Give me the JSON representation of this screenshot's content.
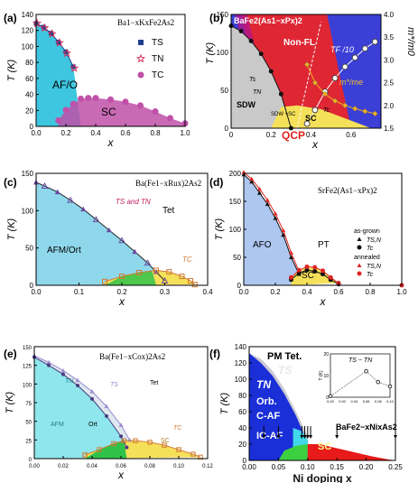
{
  "panels": [
    {
      "id": "a",
      "label": "(a)",
      "title": "Ba1−xKxFe2As2",
      "xlabel": "x",
      "ylabel": "T (K)",
      "xlim": [
        0,
        1.0
      ],
      "ylim": [
        0,
        150
      ],
      "xticks": [
        "0.0",
        "0.2",
        "0.4",
        "0.6",
        "0.8",
        "1.0"
      ],
      "yticks": [
        "0",
        "20",
        "40",
        "60",
        "80",
        "100",
        "120",
        "140"
      ],
      "region_labels": [
        "AF/O",
        "SC"
      ],
      "legend": [
        "TS",
        "TN",
        "TC"
      ],
      "ts_x": [
        0.0,
        0.05,
        0.1,
        0.15,
        0.2,
        0.25
      ],
      "ts_y": [
        138,
        133,
        125,
        113,
        100,
        80
      ],
      "tn_x": [
        0.0,
        0.05,
        0.1,
        0.15,
        0.2,
        0.25
      ],
      "tn_y": [
        138,
        132,
        124,
        112,
        98,
        78
      ],
      "tc_x": [
        0.15,
        0.2,
        0.25,
        0.3,
        0.35,
        0.4,
        0.5,
        0.6,
        0.7,
        0.8,
        0.9,
        1.0
      ],
      "tc_y": [
        8,
        22,
        30,
        37,
        38,
        38,
        36,
        33,
        28,
        20,
        11,
        4
      ],
      "colors": {
        "afo": "#3ec6e0",
        "sc": "#c050a8",
        "ts": "#1f3f8f",
        "tn": "#d0305a",
        "tc": "#c050a8"
      }
    },
    {
      "id": "b",
      "label": "(b)",
      "title": "BaFe2(As1−xPx)2",
      "xlabel": "x",
      "ylabel": "T (K)",
      "ylabel2": "m*/m0",
      "xlim": [
        0,
        0.75
      ],
      "ylim": [
        0,
        150
      ],
      "xticks": [
        "0",
        "0.2",
        "0.4",
        "0.6"
      ],
      "yticks": [
        "0",
        "50",
        "100",
        "150"
      ],
      "y2ticks": [
        "1.5",
        "2.0",
        "2.5",
        "3.0",
        "3.5",
        "4.0"
      ],
      "region_labels": [
        "SDW",
        "SC",
        "Non-FL",
        "SDW +SC",
        "QCP"
      ],
      "curve_labels": [
        "TF /10",
        "m*/me",
        "Ts",
        "TN",
        "Tc"
      ],
      "tn_x": [
        0,
        0.05,
        0.1,
        0.15,
        0.2,
        0.25,
        0.3
      ],
      "tn_y": [
        135,
        128,
        115,
        98,
        75,
        45,
        0
      ],
      "tf_x": [
        0.38,
        0.42,
        0.47,
        0.52,
        0.57,
        0.62,
        0.67,
        0.72
      ],
      "tf_y": [
        1.6,
        1.9,
        2.3,
        2.6,
        2.85,
        3.05,
        3.25,
        3.4
      ],
      "m_x": [
        0.38,
        0.42,
        0.47,
        0.52,
        0.57,
        0.62,
        0.67,
        0.72
      ],
      "m_y": [
        2.9,
        2.5,
        2.25,
        2.1,
        2.0,
        1.93,
        1.87,
        1.82
      ],
      "colors": {
        "sdw": "#c9c9c9",
        "sc": "#f5e05a",
        "red": "#e8262b",
        "blue": "#3b3fd6",
        "tn": "#111111",
        "tf": "#ffffff",
        "m": "#f0b020"
      }
    },
    {
      "id": "c",
      "label": "(c)",
      "title": "Ba(Fe1−xRux)2As2",
      "xlabel": "x",
      "ylabel": "T (K)",
      "xlim": [
        0,
        0.4
      ],
      "ylim": [
        0,
        150
      ],
      "xticks": [
        "0.0",
        "0.1",
        "0.2",
        "0.3",
        "0.4"
      ],
      "yticks": [
        "0",
        "50",
        "100",
        "150"
      ],
      "region_labels": [
        "AFM/Ort",
        "Tet"
      ],
      "curve_labels": [
        "TS and TN",
        "TC"
      ],
      "tn_x": [
        0,
        0.02,
        0.05,
        0.08,
        0.11,
        0.14,
        0.17,
        0.2,
        0.23,
        0.26,
        0.28,
        0.3
      ],
      "tn_y": [
        138,
        133,
        125,
        114,
        102,
        88,
        74,
        60,
        45,
        30,
        18,
        6
      ],
      "tc_x": [
        0.16,
        0.2,
        0.24,
        0.28,
        0.31,
        0.34,
        0.36,
        0.37
      ],
      "tc_y": [
        5,
        12,
        17,
        20,
        18,
        12,
        6,
        1
      ],
      "colors": {
        "afm": "#8fd8ec",
        "sc": "#f5e05a",
        "green": "#2fc24a",
        "tn": "#6a4aa0",
        "tc": "#d07a30"
      }
    },
    {
      "id": "d",
      "label": "(d)",
      "title": "SrFe2(As1−xPx)2",
      "xlabel": "x",
      "ylabel": "T (K)",
      "xlim": [
        0,
        1.0
      ],
      "ylim": [
        0,
        200
      ],
      "xticks": [
        "0.0",
        "0.2",
        "0.4",
        "0.6",
        "0.8",
        "1.0"
      ],
      "yticks": [
        "0",
        "50",
        "100",
        "150",
        "200"
      ],
      "region_labels": [
        "AFO",
        "PT",
        "SC"
      ],
      "legend_head": [
        "as-grown",
        "annealed"
      ],
      "legend": [
        "TS,N",
        "Tc",
        "TS,N",
        "Tc"
      ],
      "tsn_x": [
        0,
        0.05,
        0.1,
        0.15,
        0.2,
        0.25,
        0.3,
        0.35
      ],
      "tsn_y": [
        198,
        185,
        165,
        145,
        120,
        90,
        50,
        20
      ],
      "tsn2_x": [
        0,
        0.05,
        0.1,
        0.15,
        0.2,
        0.25,
        0.3,
        0.35
      ],
      "tsn2_y": [
        202,
        190,
        172,
        152,
        128,
        98,
        58,
        25
      ],
      "tc_x": [
        0.3,
        0.35,
        0.4,
        0.45,
        0.5,
        0.55,
        0.6
      ],
      "tc_y": [
        10,
        22,
        27,
        25,
        20,
        10,
        2
      ],
      "tc2_x": [
        0.3,
        0.35,
        0.4,
        0.45,
        0.5,
        0.55,
        0.6
      ],
      "tc2_y": [
        14,
        27,
        33,
        32,
        26,
        14,
        4
      ],
      "tc3_x": [
        1.0
      ],
      "tc3_y": [
        0
      ],
      "colors": {
        "afo": "#aec7f0",
        "sc": "#f5e05a",
        "black": "#111111",
        "red": "#e02424"
      }
    },
    {
      "id": "e",
      "label": "(e)",
      "title": "Ba(Fe1−xCox)2As2",
      "xlabel": "x",
      "ylabel": "T (K)",
      "xlim": [
        0,
        0.12
      ],
      "ylim": [
        0,
        150
      ],
      "xticks": [
        "0.00",
        "0.02",
        "0.04",
        "0.06",
        "0.08",
        "0.10",
        "0.12"
      ],
      "yticks": [
        "0",
        "25",
        "50",
        "75",
        "100",
        "125",
        "150"
      ],
      "region_labels": [
        "AFM",
        "Ort",
        "Tet",
        "SC"
      ],
      "curve_labels": [
        "TN",
        "TS",
        "TC"
      ],
      "tn_x": [
        0,
        0.01,
        0.02,
        0.03,
        0.04,
        0.05,
        0.06,
        0.064
      ],
      "tn_y": [
        136,
        125,
        113,
        98,
        80,
        57,
        30,
        15
      ],
      "ts_x": [
        0,
        0.01,
        0.02,
        0.03,
        0.04,
        0.05,
        0.06,
        0.066
      ],
      "ts_y": [
        138,
        129,
        118,
        105,
        90,
        70,
        45,
        25
      ],
      "tc_x": [
        0.035,
        0.045,
        0.055,
        0.062,
        0.07,
        0.08,
        0.09,
        0.1,
        0.11,
        0.115
      ],
      "tc_y": [
        5,
        12,
        20,
        24,
        24,
        22,
        18,
        12,
        6,
        2
      ],
      "colors": {
        "afm": "#8fe6ec",
        "ort": "#dfe8ee",
        "sc": "#f5e05a",
        "green": "#2fc24a",
        "tn": "#4a3a80",
        "ts": "#9a8ad0",
        "tc": "#d07a30"
      }
    },
    {
      "id": "f",
      "label": "(f)",
      "title": "BaFe2−xNixAs2",
      "xlabel": "Ni doping x",
      "ylabel": "T (K)",
      "xlim": [
        0,
        0.25
      ],
      "ylim": [
        0,
        140
      ],
      "xticks": [
        "0.00",
        "0.05",
        "0.10",
        "0.15",
        "0.20",
        "0.25"
      ],
      "yticks": [
        "0",
        "20",
        "40",
        "60",
        "80",
        "100",
        "120",
        "140"
      ],
      "region_labels": [
        "PM Tet.",
        "TN",
        "TS",
        "Orb.",
        "C-AF",
        "IC-AF",
        "SC"
      ],
      "inset": {
        "title": "TS − TN",
        "ylabel": "T (K)",
        "xlim": [
          0,
          0.1
        ],
        "ylim": [
          0,
          20
        ],
        "xticks": [
          "0.00",
          "0.02",
          "0.04",
          "0.06",
          "0.08",
          "0.10"
        ],
        "yticks": [
          "0",
          "10",
          "20"
        ],
        "x": [
          0.0,
          0.06,
          0.08,
          0.1
        ],
        "y": [
          0.5,
          12,
          7,
          5
        ]
      },
      "colors": {
        "blue": "#1a2fd8",
        "gray": "#c8c8d0",
        "cyan": "#40d8e8",
        "green": "#3cd040",
        "sc": "#e81a1a"
      }
    }
  ]
}
